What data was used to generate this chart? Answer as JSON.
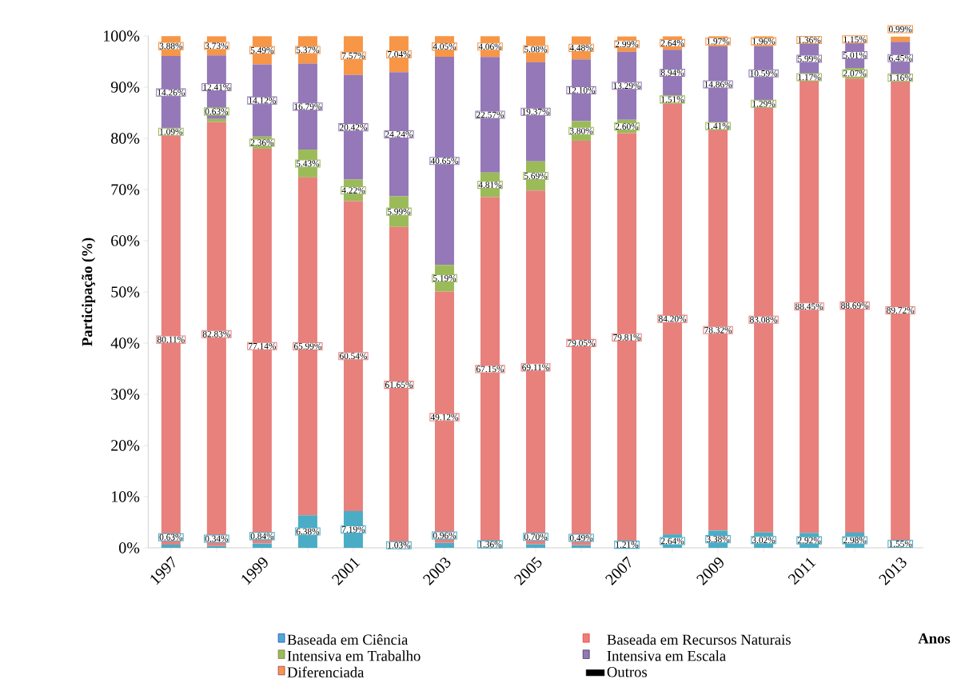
{
  "chart_data": {
    "type": "bar",
    "stacked": true,
    "legend": "bottom",
    "ylabel": "Participação (%)",
    "xlabel": "Anos",
    "categories": [
      "1997",
      null,
      "1999",
      null,
      "2001",
      null,
      "2003",
      null,
      "2005",
      null,
      "2007",
      null,
      "2009",
      null,
      "2011",
      null,
      "2013"
    ],
    "ylim": [
      0,
      100
    ],
    "yticks": [
      {
        "value": 0,
        "label": "0%"
      },
      {
        "value": 10,
        "label": "10%"
      },
      {
        "value": 20,
        "label": "20%"
      },
      {
        "value": 30,
        "label": "30%"
      },
      {
        "value": 40,
        "label": "40%"
      },
      {
        "value": 50,
        "label": "50%"
      },
      {
        "value": 60,
        "label": "60%"
      },
      {
        "value": 70,
        "label": "70%"
      },
      {
        "value": 80,
        "label": "80%"
      },
      {
        "value": 90,
        "label": "90%"
      },
      {
        "value": 100,
        "label": "100%"
      }
    ],
    "series": [
      {
        "name": "Baseada em Ciência",
        "color": "#4bacc6",
        "values": [
          0.63,
          0.34,
          0.84,
          6.38,
          7.19,
          1.03,
          0.96,
          1.36,
          0.7,
          0.49,
          1.21,
          2.64,
          3.38,
          3.02,
          2.92,
          2.98,
          1.55
        ],
        "value_labels": [
          "0.63%",
          "0.34%",
          "0.84%",
          "6.38%",
          "7.19%",
          "1.03%",
          "0.96%",
          "1.36%",
          "0.70%",
          "0.49%",
          "1.21%",
          "2.64%",
          "3.38%",
          "3.02%",
          "2.92%",
          "2.98%",
          "1.55%"
        ]
      },
      {
        "name": "Baseada em Recursos Naturais",
        "color": "#e8807c",
        "values": [
          80.11,
          82.83,
          77.14,
          65.99,
          60.54,
          61.65,
          49.12,
          67.15,
          69.11,
          79.05,
          79.81,
          84.2,
          78.32,
          83.08,
          88.45,
          88.69,
          89.72
        ],
        "value_labels": [
          "80.11%",
          "82.83%",
          "77.14%",
          "65.99%",
          "60.54%",
          "61.65%",
          "49.12%",
          "67.15%",
          "69.11%",
          "79.05%",
          "79.81%",
          "84.20%",
          "78.32%",
          "83.08%",
          "88.45%",
          "88.69%",
          "89.72%"
        ]
      },
      {
        "name": "Intensiva em Trabalho",
        "color": "#9bbb59",
        "values": [
          1.09,
          0.63,
          2.36,
          5.43,
          4.22,
          5.99,
          5.19,
          4.81,
          5.69,
          3.8,
          2.6,
          1.51,
          1.41,
          1.29,
          1.17,
          2.07,
          1.16
        ],
        "value_labels": [
          "1.09%",
          "0.63%",
          "2.36%",
          "5.43%",
          "4.22%",
          "5.99%",
          "5.19%",
          "4.81%",
          "5.69%",
          "3.80%",
          "2.60%",
          "1.51%",
          "1.41%",
          "1.29%",
          "1.17%",
          "2.07%",
          "1.16%"
        ]
      },
      {
        "name": "Intensiva em Escala",
        "color": "#9478b8",
        "values": [
          14.26,
          12.41,
          14.12,
          16.79,
          20.42,
          24.24,
          40.65,
          22.57,
          19.37,
          12.1,
          13.29,
          8.94,
          14.86,
          10.59,
          5.99,
          5.01,
          6.45
        ],
        "value_labels": [
          "14.26%",
          "12.41%",
          "14.12%",
          "16.79%",
          "20.42%",
          "24.24%",
          "40.65%",
          "22.57%",
          "19.37%",
          "12.10%",
          "13.29%",
          "8.94%",
          "14.86%",
          "10.59%",
          "5.99%",
          "5.01%",
          "6.45%"
        ]
      },
      {
        "name": "Diferenciada",
        "color": "#f79646",
        "values": [
          3.88,
          3.73,
          5.49,
          5.37,
          7.57,
          7.04,
          4.05,
          4.06,
          5.08,
          4.48,
          2.99,
          2.64,
          1.97,
          1.96,
          1.36,
          1.15,
          0.99
        ],
        "value_labels": [
          "3.88%",
          "3.73%",
          "5.49%",
          "5.37%",
          "7.57%",
          "7.04%",
          "4.05%",
          "4.06%",
          "5.08%",
          "4.48%",
          "2.99%",
          "2.64%",
          "1.97%",
          "1.96%",
          "1.36%",
          "1.15%",
          "0.99%"
        ]
      },
      {
        "name": "Outros",
        "color": "#000000",
        "values": [
          null,
          null,
          null,
          null,
          null,
          null,
          null,
          null,
          null,
          null,
          null,
          null,
          null,
          null,
          null,
          null,
          null
        ]
      }
    ]
  }
}
